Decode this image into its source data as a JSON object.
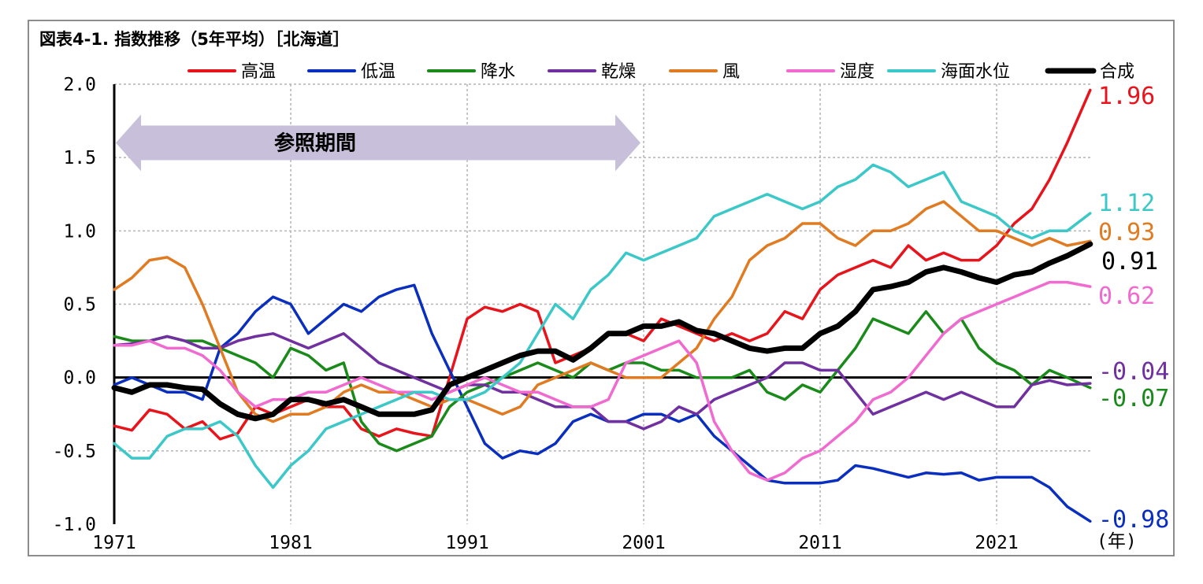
{
  "title": "図表4-1. 指数推移（5年平均）［北海道］",
  "annotation": "参照期間",
  "unit_label": "(年)",
  "chart_data": {
    "type": "line",
    "title": "図表4-1. 指数推移（5年平均）［北海道］",
    "xlabel": "(年)",
    "ylabel": "",
    "ylim": [
      -1.0,
      2.0
    ],
    "yticks": [
      2.0,
      1.5,
      1.0,
      0.5,
      0.0,
      -0.5,
      -1.0
    ],
    "ytick_labels": [
      "2.0",
      "1.5",
      "1.0",
      "0.5",
      "0.0",
      "-0.5",
      "-1.0"
    ],
    "xlim": [
      1971,
      2026.4
    ],
    "xticks": [
      1971,
      1981,
      1991,
      2001,
      2011,
      2021
    ],
    "xtick_labels": [
      "1971",
      "1981",
      "1991",
      "2001",
      "2011",
      "2021"
    ],
    "grid": "vertical and horizontal dashed",
    "legend_position": "top",
    "reference_period": [
      1971,
      2001
    ],
    "series": [
      {
        "name": "高温",
        "color": "#e8141c",
        "end_label": "1.96",
        "x": [
          1971,
          1972,
          1973,
          1974,
          1975,
          1976,
          1977,
          1978,
          1979,
          1980,
          1981,
          1982,
          1983,
          1984,
          1985,
          1986,
          1987,
          1988,
          1989,
          1990,
          1991,
          1992,
          1993,
          1994,
          1995,
          1996,
          1997,
          1998,
          1999,
          2000,
          2001,
          2002,
          2003,
          2004,
          2005,
          2006,
          2007,
          2008,
          2009,
          2010,
          2011,
          2012,
          2013,
          2014,
          2015,
          2016,
          2017,
          2018,
          2019,
          2020,
          2021,
          2022,
          2023,
          2024,
          2025,
          2026.3
        ],
        "values": [
          -0.33,
          -0.36,
          -0.22,
          -0.25,
          -0.35,
          -0.3,
          -0.42,
          -0.38,
          -0.2,
          -0.25,
          -0.2,
          -0.15,
          -0.2,
          -0.2,
          -0.35,
          -0.4,
          -0.35,
          -0.38,
          -0.4,
          0.0,
          0.4,
          0.48,
          0.45,
          0.5,
          0.45,
          0.1,
          0.15,
          0.2,
          0.3,
          0.3,
          0.25,
          0.4,
          0.35,
          0.3,
          0.25,
          0.3,
          0.25,
          0.3,
          0.45,
          0.4,
          0.6,
          0.7,
          0.75,
          0.8,
          0.75,
          0.9,
          0.8,
          0.85,
          0.8,
          0.8,
          0.9,
          1.05,
          1.15,
          1.35,
          1.6,
          1.96
        ]
      },
      {
        "name": "低温",
        "color": "#0a2fbf",
        "end_label": "-0.98",
        "x": [
          1971,
          1972,
          1973,
          1974,
          1975,
          1976,
          1977,
          1978,
          1979,
          1980,
          1981,
          1982,
          1983,
          1984,
          1985,
          1986,
          1987,
          1988,
          1989,
          1990,
          1991,
          1992,
          1993,
          1994,
          1995,
          1996,
          1997,
          1998,
          1999,
          2000,
          2001,
          2002,
          2003,
          2004,
          2005,
          2006,
          2007,
          2008,
          2009,
          2010,
          2011,
          2012,
          2013,
          2014,
          2015,
          2016,
          2017,
          2018,
          2019,
          2020,
          2021,
          2022,
          2023,
          2024,
          2025,
          2026.3
        ],
        "values": [
          -0.05,
          0.0,
          -0.05,
          -0.1,
          -0.1,
          -0.15,
          0.2,
          0.3,
          0.45,
          0.55,
          0.5,
          0.3,
          0.4,
          0.5,
          0.45,
          0.55,
          0.6,
          0.63,
          0.3,
          0.05,
          -0.2,
          -0.45,
          -0.55,
          -0.5,
          -0.52,
          -0.45,
          -0.3,
          -0.25,
          -0.3,
          -0.3,
          -0.25,
          -0.25,
          -0.3,
          -0.25,
          -0.4,
          -0.5,
          -0.6,
          -0.7,
          -0.72,
          -0.72,
          -0.72,
          -0.7,
          -0.6,
          -0.62,
          -0.65,
          -0.68,
          -0.65,
          -0.66,
          -0.65,
          -0.7,
          -0.68,
          -0.68,
          -0.68,
          -0.75,
          -0.88,
          -0.98
        ]
      },
      {
        "name": "降水",
        "color": "#1a8a1a",
        "end_label": "-0.07",
        "x": [
          1971,
          1972,
          1973,
          1974,
          1975,
          1976,
          1977,
          1978,
          1979,
          1980,
          1981,
          1982,
          1983,
          1984,
          1985,
          1986,
          1987,
          1988,
          1989,
          1990,
          1991,
          1992,
          1993,
          1994,
          1995,
          1996,
          1997,
          1998,
          1999,
          2000,
          2001,
          2002,
          2003,
          2004,
          2005,
          2006,
          2007,
          2008,
          2009,
          2010,
          2011,
          2012,
          2013,
          2014,
          2015,
          2016,
          2017,
          2018,
          2019,
          2020,
          2021,
          2022,
          2023,
          2024,
          2025,
          2026.3
        ],
        "values": [
          0.28,
          0.25,
          0.25,
          0.28,
          0.25,
          0.25,
          0.2,
          0.15,
          0.1,
          0.0,
          0.2,
          0.15,
          0.05,
          0.1,
          -0.3,
          -0.45,
          -0.5,
          -0.45,
          -0.4,
          -0.2,
          -0.1,
          -0.05,
          0.0,
          0.05,
          0.1,
          0.05,
          0.0,
          0.1,
          0.05,
          0.1,
          0.1,
          0.05,
          0.05,
          0.0,
          0.0,
          0.0,
          0.05,
          -0.1,
          -0.15,
          -0.05,
          -0.1,
          0.05,
          0.2,
          0.4,
          0.35,
          0.3,
          0.45,
          0.3,
          0.4,
          0.2,
          0.1,
          0.05,
          -0.05,
          0.05,
          0.0,
          -0.07
        ]
      },
      {
        "name": "乾燥",
        "color": "#7030a0",
        "end_label": "-0.04",
        "x": [
          1971,
          1972,
          1973,
          1974,
          1975,
          1976,
          1977,
          1978,
          1979,
          1980,
          1981,
          1982,
          1983,
          1984,
          1985,
          1986,
          1987,
          1988,
          1989,
          1990,
          1991,
          1992,
          1993,
          1994,
          1995,
          1996,
          1997,
          1998,
          1999,
          2000,
          2001,
          2002,
          2003,
          2004,
          2005,
          2006,
          2007,
          2008,
          2009,
          2010,
          2011,
          2012,
          2013,
          2014,
          2015,
          2016,
          2017,
          2018,
          2019,
          2020,
          2021,
          2022,
          2023,
          2024,
          2025,
          2026.3
        ],
        "values": [
          0.22,
          0.23,
          0.25,
          0.28,
          0.25,
          0.2,
          0.2,
          0.25,
          0.28,
          0.3,
          0.25,
          0.2,
          0.25,
          0.3,
          0.2,
          0.1,
          0.05,
          0.0,
          -0.05,
          -0.1,
          -0.05,
          -0.05,
          -0.1,
          -0.1,
          -0.15,
          -0.2,
          -0.2,
          -0.2,
          -0.3,
          -0.3,
          -0.35,
          -0.3,
          -0.2,
          -0.25,
          -0.15,
          -0.1,
          -0.05,
          0.0,
          0.1,
          0.1,
          0.05,
          0.05,
          -0.1,
          -0.25,
          -0.2,
          -0.15,
          -0.1,
          -0.15,
          -0.1,
          -0.15,
          -0.2,
          -0.2,
          -0.05,
          -0.02,
          -0.05,
          -0.04
        ]
      },
      {
        "name": "風",
        "color": "#e07b22",
        "end_label": "0.93",
        "x": [
          1971,
          1972,
          1973,
          1974,
          1975,
          1976,
          1977,
          1978,
          1979,
          1980,
          1981,
          1982,
          1983,
          1984,
          1985,
          1986,
          1987,
          1988,
          1989,
          1990,
          1991,
          1992,
          1993,
          1994,
          1995,
          1996,
          1997,
          1998,
          1999,
          2000,
          2001,
          2002,
          2003,
          2004,
          2005,
          2006,
          2007,
          2008,
          2009,
          2010,
          2011,
          2012,
          2013,
          2014,
          2015,
          2016,
          2017,
          2018,
          2019,
          2020,
          2021,
          2022,
          2023,
          2024,
          2025,
          2026.3
        ],
        "values": [
          0.6,
          0.68,
          0.8,
          0.82,
          0.75,
          0.5,
          0.2,
          -0.1,
          -0.25,
          -0.3,
          -0.25,
          -0.25,
          -0.2,
          -0.1,
          -0.05,
          -0.1,
          -0.1,
          -0.15,
          -0.2,
          -0.15,
          -0.15,
          -0.2,
          -0.25,
          -0.2,
          -0.05,
          0.0,
          0.05,
          0.1,
          0.05,
          0.0,
          0.0,
          0.0,
          0.1,
          0.2,
          0.4,
          0.55,
          0.8,
          0.9,
          0.95,
          1.05,
          1.05,
          0.95,
          0.9,
          1.0,
          1.0,
          1.05,
          1.15,
          1.2,
          1.1,
          1.0,
          1.0,
          0.95,
          0.9,
          0.95,
          0.9,
          0.93
        ]
      },
      {
        "name": "湿度",
        "color": "#f06ad0",
        "end_label": "0.62",
        "x": [
          1971,
          1972,
          1973,
          1974,
          1975,
          1976,
          1977,
          1978,
          1979,
          1980,
          1981,
          1982,
          1983,
          1984,
          1985,
          1986,
          1987,
          1988,
          1989,
          1990,
          1991,
          1992,
          1993,
          1994,
          1995,
          1996,
          1997,
          1998,
          1999,
          2000,
          2001,
          2002,
          2003,
          2004,
          2005,
          2006,
          2007,
          2008,
          2009,
          2010,
          2011,
          2012,
          2013,
          2014,
          2015,
          2016,
          2017,
          2018,
          2019,
          2020,
          2021,
          2022,
          2023,
          2024,
          2025,
          2026.3
        ],
        "values": [
          0.22,
          0.22,
          0.25,
          0.2,
          0.2,
          0.15,
          0.05,
          -0.1,
          -0.2,
          -0.15,
          -0.15,
          -0.1,
          -0.1,
          -0.05,
          0.0,
          -0.05,
          -0.1,
          -0.1,
          -0.15,
          -0.1,
          -0.05,
          0.0,
          -0.05,
          -0.1,
          -0.1,
          -0.15,
          -0.2,
          -0.2,
          -0.15,
          0.1,
          0.15,
          0.2,
          0.25,
          0.1,
          -0.3,
          -0.5,
          -0.65,
          -0.7,
          -0.65,
          -0.55,
          -0.5,
          -0.4,
          -0.3,
          -0.15,
          -0.1,
          0.0,
          0.15,
          0.3,
          0.4,
          0.45,
          0.5,
          0.55,
          0.6,
          0.65,
          0.65,
          0.62
        ]
      },
      {
        "name": "海面水位",
        "color": "#3cc8c8",
        "end_label": "1.12",
        "x": [
          1971,
          1972,
          1973,
          1974,
          1975,
          1976,
          1977,
          1978,
          1979,
          1980,
          1981,
          1982,
          1983,
          1984,
          1985,
          1986,
          1987,
          1988,
          1989,
          1990,
          1991,
          1992,
          1993,
          1994,
          1995,
          1996,
          1997,
          1998,
          1999,
          2000,
          2001,
          2002,
          2003,
          2004,
          2005,
          2006,
          2007,
          2008,
          2009,
          2010,
          2011,
          2012,
          2013,
          2014,
          2015,
          2016,
          2017,
          2018,
          2019,
          2020,
          2021,
          2022,
          2023,
          2024,
          2025,
          2026.3
        ],
        "values": [
          -0.45,
          -0.55,
          -0.55,
          -0.4,
          -0.35,
          -0.35,
          -0.3,
          -0.4,
          -0.6,
          -0.75,
          -0.6,
          -0.5,
          -0.35,
          -0.3,
          -0.25,
          -0.2,
          -0.15,
          -0.1,
          -0.1,
          -0.15,
          -0.15,
          -0.1,
          0.0,
          0.1,
          0.3,
          0.5,
          0.4,
          0.6,
          0.7,
          0.85,
          0.8,
          0.85,
          0.9,
          0.95,
          1.1,
          1.15,
          1.2,
          1.25,
          1.2,
          1.15,
          1.2,
          1.3,
          1.35,
          1.45,
          1.4,
          1.3,
          1.35,
          1.4,
          1.2,
          1.15,
          1.1,
          1.0,
          0.95,
          1.0,
          1.0,
          1.12
        ]
      },
      {
        "name": "合成",
        "color": "#000000",
        "end_label": "0.91",
        "x": [
          1971,
          1972,
          1973,
          1974,
          1975,
          1976,
          1977,
          1978,
          1979,
          1980,
          1981,
          1982,
          1983,
          1984,
          1985,
          1986,
          1987,
          1988,
          1989,
          1990,
          1991,
          1992,
          1993,
          1994,
          1995,
          1996,
          1997,
          1998,
          1999,
          2000,
          2001,
          2002,
          2003,
          2004,
          2005,
          2006,
          2007,
          2008,
          2009,
          2010,
          2011,
          2012,
          2013,
          2014,
          2015,
          2016,
          2017,
          2018,
          2019,
          2020,
          2021,
          2022,
          2023,
          2024,
          2025,
          2026.3
        ],
        "values": [
          -0.07,
          -0.1,
          -0.05,
          -0.05,
          -0.07,
          -0.08,
          -0.18,
          -0.25,
          -0.28,
          -0.25,
          -0.15,
          -0.15,
          -0.18,
          -0.15,
          -0.2,
          -0.25,
          -0.25,
          -0.25,
          -0.22,
          -0.05,
          0.0,
          0.05,
          0.1,
          0.15,
          0.18,
          0.18,
          0.12,
          0.2,
          0.3,
          0.3,
          0.35,
          0.35,
          0.38,
          0.32,
          0.3,
          0.25,
          0.2,
          0.18,
          0.2,
          0.2,
          0.3,
          0.35,
          0.45,
          0.6,
          0.62,
          0.65,
          0.72,
          0.75,
          0.72,
          0.68,
          0.65,
          0.7,
          0.72,
          0.78,
          0.83,
          0.91
        ]
      }
    ]
  }
}
